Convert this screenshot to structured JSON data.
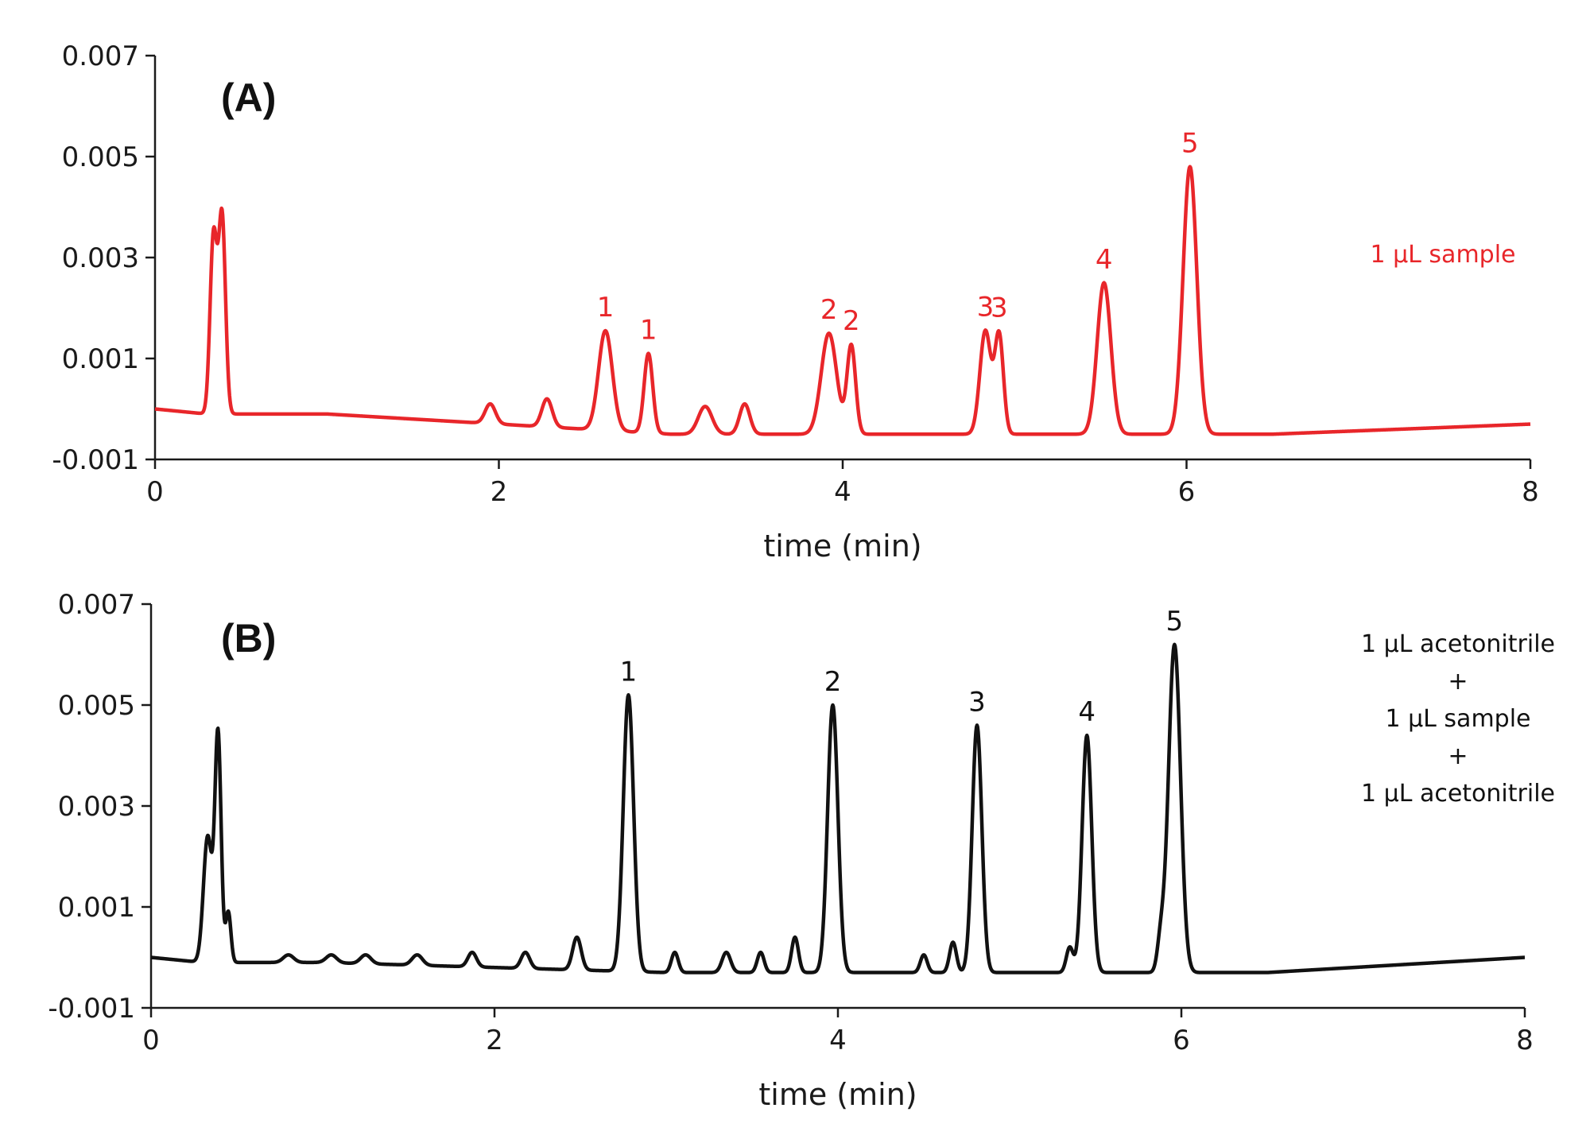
{
  "chart_data": [
    {
      "type": "line",
      "panel_label": "(A)",
      "xlabel": "time (min)",
      "ylabel": "",
      "xlim": [
        0,
        8
      ],
      "ylim": [
        -0.001,
        0.007
      ],
      "xticks": [
        "0",
        "2",
        "4",
        "6",
        "8"
      ],
      "yticks": [
        "-0.001",
        "0.001",
        "0.003",
        "0.005",
        "0.007"
      ],
      "grid": false,
      "color": "#e8262a",
      "annotation": [
        "1 µL sample"
      ],
      "baseline": [
        [
          0,
          0.0
        ],
        [
          0.3,
          -0.0001
        ],
        [
          1.0,
          -0.0001
        ],
        [
          2.0,
          -0.0003
        ],
        [
          3.0,
          -0.0005
        ],
        [
          4.2,
          -0.0005
        ],
        [
          5.0,
          -0.0005
        ],
        [
          6.5,
          -0.0005
        ],
        [
          8.0,
          -0.0003
        ]
      ],
      "series": [
        {
          "peaks": [
            {
              "t": 0.34,
              "height": 0.0034,
              "width": 0.02
            },
            {
              "t": 0.39,
              "height": 0.0038,
              "width": 0.02
            },
            {
              "t": 1.95,
              "height": 0.0001,
              "width": 0.03
            },
            {
              "t": 2.28,
              "height": 0.0002,
              "width": 0.03
            },
            {
              "t": 2.62,
              "height": 0.00155,
              "width": 0.04,
              "label": "1"
            },
            {
              "t": 2.87,
              "height": 0.0011,
              "width": 0.025,
              "label": "1"
            },
            {
              "t": 3.2,
              "height": 5e-05,
              "width": 0.04
            },
            {
              "t": 3.43,
              "height": 0.0001,
              "width": 0.03
            },
            {
              "t": 3.92,
              "height": 0.0015,
              "width": 0.045,
              "label": "2"
            },
            {
              "t": 4.05,
              "height": 0.00125,
              "width": 0.025,
              "label": "2"
            },
            {
              "t": 4.83,
              "height": 0.00155,
              "width": 0.032,
              "label": "3"
            },
            {
              "t": 4.91,
              "height": 0.00145,
              "width": 0.025,
              "label": "3"
            },
            {
              "t": 5.52,
              "height": 0.0025,
              "width": 0.04,
              "label": "4"
            },
            {
              "t": 6.02,
              "height": 0.0048,
              "width": 0.04,
              "label": "5"
            }
          ]
        }
      ]
    },
    {
      "type": "line",
      "panel_label": "(B)",
      "xlabel": "time (min)",
      "ylabel": "",
      "xlim": [
        0,
        8
      ],
      "ylim": [
        -0.001,
        0.007
      ],
      "xticks": [
        "0",
        "2",
        "4",
        "6",
        "8"
      ],
      "yticks": [
        "-0.001",
        "0.001",
        "0.003",
        "0.005",
        "0.007"
      ],
      "grid": false,
      "color": "#111111",
      "annotation": [
        "1 µL acetonitrile",
        "+",
        "1 µL sample",
        "+",
        "1 µL acetonitrile"
      ],
      "baseline": [
        [
          0,
          0.0
        ],
        [
          0.3,
          -0.0001
        ],
        [
          1.0,
          -0.0001
        ],
        [
          2.0,
          -0.0002
        ],
        [
          3.0,
          -0.0003
        ],
        [
          4.5,
          -0.0003
        ],
        [
          6.5,
          -0.0003
        ],
        [
          8.0,
          0.0
        ]
      ],
      "series": [
        {
          "peaks": [
            {
              "t": 0.33,
              "height": 0.0024,
              "width": 0.025
            },
            {
              "t": 0.39,
              "height": 0.0044,
              "width": 0.018
            },
            {
              "t": 0.45,
              "height": 0.0009,
              "width": 0.015
            },
            {
              "t": 0.8,
              "height": 5e-05,
              "width": 0.03
            },
            {
              "t": 1.05,
              "height": 5e-05,
              "width": 0.03
            },
            {
              "t": 1.25,
              "height": 5e-05,
              "width": 0.03
            },
            {
              "t": 1.55,
              "height": 5e-05,
              "width": 0.03
            },
            {
              "t": 1.87,
              "height": 0.0001,
              "width": 0.025
            },
            {
              "t": 2.18,
              "height": 0.0001,
              "width": 0.025
            },
            {
              "t": 2.48,
              "height": 0.0004,
              "width": 0.025
            },
            {
              "t": 2.78,
              "height": 0.0052,
              "width": 0.03,
              "label": "1"
            },
            {
              "t": 3.05,
              "height": 0.0001,
              "width": 0.02
            },
            {
              "t": 3.35,
              "height": 0.0001,
              "width": 0.025
            },
            {
              "t": 3.55,
              "height": 0.0001,
              "width": 0.02
            },
            {
              "t": 3.75,
              "height": 0.0004,
              "width": 0.02
            },
            {
              "t": 3.97,
              "height": 0.005,
              "width": 0.03,
              "label": "2"
            },
            {
              "t": 4.5,
              "height": 5e-05,
              "width": 0.02
            },
            {
              "t": 4.67,
              "height": 0.0003,
              "width": 0.02
            },
            {
              "t": 4.81,
              "height": 0.0046,
              "width": 0.028,
              "label": "3"
            },
            {
              "t": 5.35,
              "height": 0.0002,
              "width": 0.02
            },
            {
              "t": 5.45,
              "height": 0.0044,
              "width": 0.028,
              "label": "4"
            },
            {
              "t": 5.88,
              "height": 0.0003,
              "width": 0.02
            },
            {
              "t": 5.96,
              "height": 0.0062,
              "width": 0.035,
              "label": "5"
            }
          ]
        }
      ]
    }
  ]
}
